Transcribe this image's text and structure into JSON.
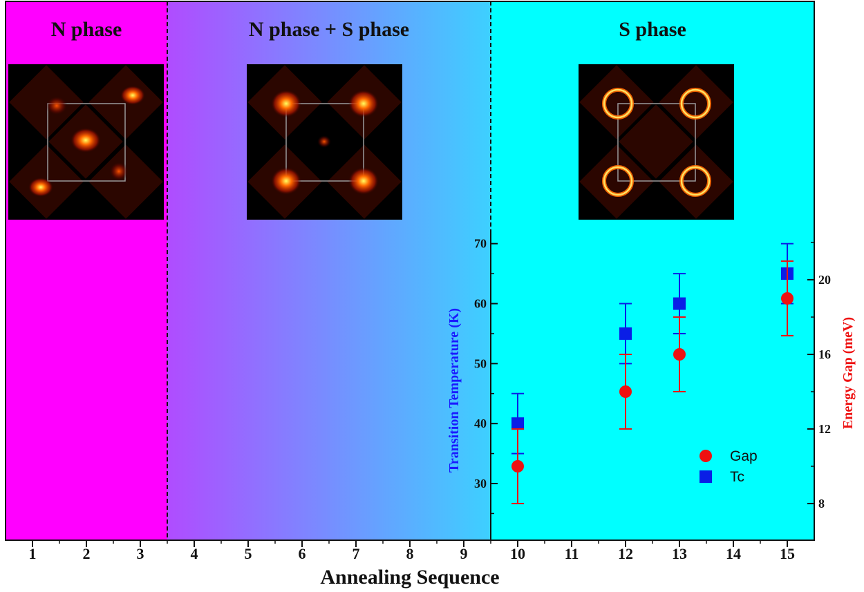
{
  "chart_data": {
    "type": "scatter",
    "xlabel": "Annealing Sequence",
    "x_ticks": [
      "1",
      "2",
      "3",
      "4",
      "5",
      "6",
      "7",
      "8",
      "9",
      "10",
      "11",
      "12",
      "13",
      "14",
      "15"
    ],
    "xlim": [
      0.5,
      15.5
    ],
    "phases": [
      {
        "label": "N phase",
        "range": [
          0.5,
          3.5
        ],
        "color": "#ff00ff"
      },
      {
        "label": "N phase + S phase",
        "range": [
          3.5,
          9.5
        ],
        "color_start": "#b04cff",
        "color_end": "#3dd0ff"
      },
      {
        "label": "S phase",
        "range": [
          9.5,
          15.5
        ],
        "color": "#00ffff"
      }
    ],
    "phase_boundaries": [
      3.5,
      9.5
    ],
    "y_left": {
      "label": "Transition Temperature (K)",
      "ticks": [
        "30",
        "40",
        "50",
        "60",
        "70"
      ],
      "lim": [
        22,
        72
      ],
      "color": "#1a1aff"
    },
    "y_right": {
      "label": "Energy Gap (meV)",
      "ticks": [
        "8",
        "12",
        "16",
        "20"
      ],
      "lim": [
        6.5,
        22
      ],
      "color": "#ee1111"
    },
    "series": [
      {
        "name": "Tc",
        "axis": "left",
        "marker": "square",
        "color": "#0a1ee6",
        "points": [
          {
            "x": 10,
            "y": 40,
            "err": 5
          },
          {
            "x": 12,
            "y": 55,
            "err": 5
          },
          {
            "x": 13,
            "y": 60,
            "err": 5
          },
          {
            "x": 15,
            "y": 65,
            "err": 5
          }
        ]
      },
      {
        "name": "Gap",
        "axis": "right",
        "marker": "circle",
        "color": "#ee1111",
        "points": [
          {
            "x": 10,
            "y": 10,
            "err": 2
          },
          {
            "x": 12,
            "y": 14,
            "err": 2
          },
          {
            "x": 13,
            "y": 16,
            "err": 2
          },
          {
            "x": 15,
            "y": 19,
            "err": 2
          }
        ]
      }
    ],
    "legend": [
      {
        "name": "Gap",
        "marker": "circle",
        "color": "#ee1111"
      },
      {
        "name": "Tc",
        "marker": "square",
        "color": "#0a1ee6"
      }
    ],
    "legend_position": "bottom-right",
    "insets": [
      {
        "phase": "N phase",
        "spots": "diffuse blobs, bright center"
      },
      {
        "phase": "N phase + S phase",
        "spots": "mixed blobs and faint rings"
      },
      {
        "phase": "S phase",
        "spots": "four sharp rings at corners"
      }
    ]
  }
}
